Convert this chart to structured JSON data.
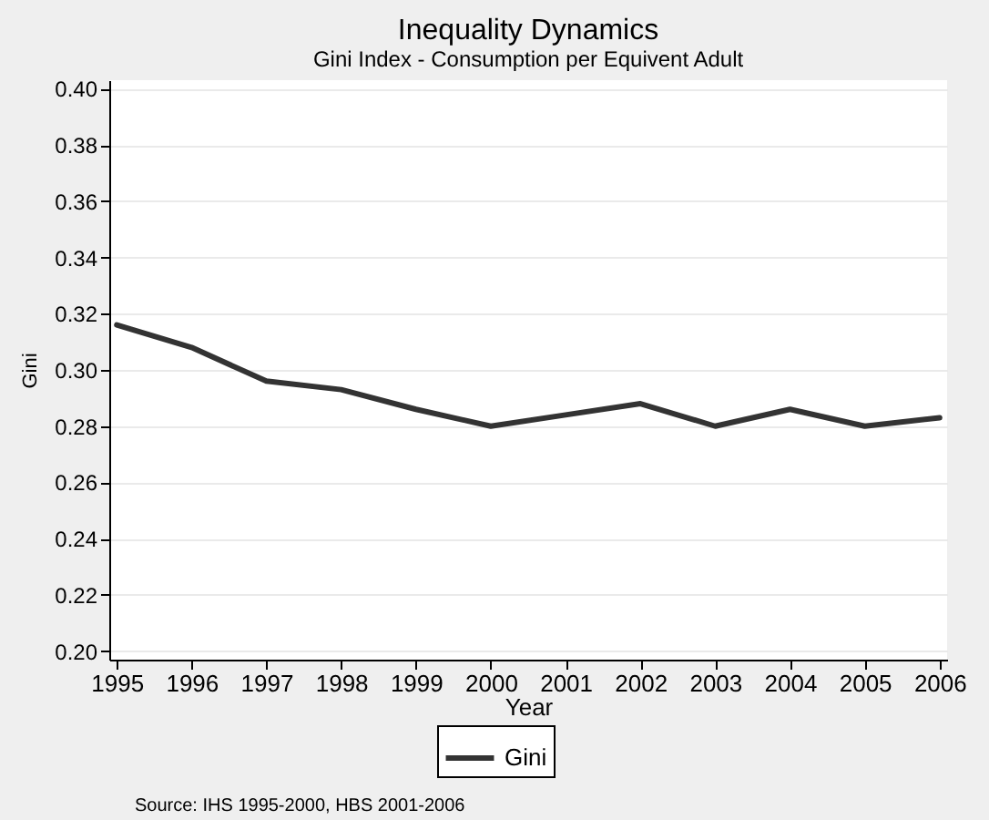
{
  "chart_data": {
    "type": "line",
    "title": "Inequality Dynamics",
    "subtitle": "Gini Index - Consumption per Equivent Adult",
    "xlabel": "Year",
    "ylabel": "Gini",
    "x": [
      1995,
      1996,
      1997,
      1998,
      1999,
      2000,
      2001,
      2002,
      2003,
      2004,
      2005,
      2006
    ],
    "series": [
      {
        "name": "Gini",
        "color": "#333333",
        "values": [
          0.316,
          0.308,
          0.296,
          0.293,
          0.286,
          0.28,
          0.284,
          0.288,
          0.28,
          0.286,
          0.28,
          0.283
        ]
      }
    ],
    "xlim": [
      1994.9,
      2006.1
    ],
    "xticks": [
      1995,
      1996,
      1997,
      1998,
      1999,
      2000,
      2001,
      2002,
      2003,
      2004,
      2005,
      2006
    ],
    "ylim": [
      0.197,
      0.403
    ],
    "yticks": [
      {
        "value": 0.2,
        "label": "0.20"
      },
      {
        "value": 0.22,
        "label": "0.22"
      },
      {
        "value": 0.24,
        "label": "0.24"
      },
      {
        "value": 0.26,
        "label": "0.26"
      },
      {
        "value": 0.28,
        "label": "0.28"
      },
      {
        "value": 0.3,
        "label": "0.30"
      },
      {
        "value": 0.32,
        "label": "0.32"
      },
      {
        "value": 0.34,
        "label": "0.34"
      },
      {
        "value": 0.36,
        "label": "0.36"
      },
      {
        "value": 0.38,
        "label": "0.38"
      },
      {
        "value": 0.4,
        "label": "0.40"
      }
    ],
    "grid": "y",
    "legend": "bottom",
    "line_style": "solid",
    "annotations": [
      "Source: IHS 1995-2000, HBS 2001-2006"
    ]
  }
}
